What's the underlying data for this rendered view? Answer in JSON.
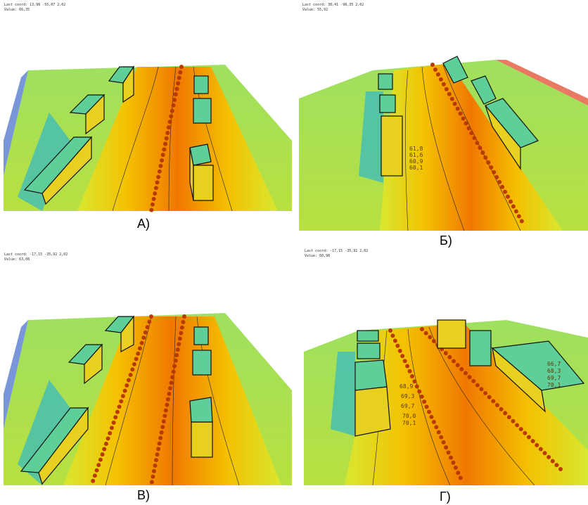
{
  "panels": [
    {
      "caption": "А)",
      "header": [
        "Last coord:  13,98  -55,07  2,02",
        "Value: 66,35"
      ]
    },
    {
      "caption": "Б)",
      "header": [
        "Last coord:  38,41  -98,35  2,02",
        "Value: 55,92"
      ],
      "annotations": [
        "61,8",
        "61,6",
        "60,9",
        "60,1"
      ]
    },
    {
      "caption": "В)",
      "header": [
        "Last coord:  -17,15  -35,92  2,02",
        "Value: 63,08"
      ]
    },
    {
      "caption": "Г)",
      "header": [
        "Last coord:  -17,15  -35,92  2,02",
        "Value: 60,98"
      ],
      "annotations": [
        "68,9",
        "69,3",
        "69,7",
        "70,0",
        "70,1",
        "66,7",
        "68,3",
        "69,7",
        "70,1"
      ]
    }
  ]
}
